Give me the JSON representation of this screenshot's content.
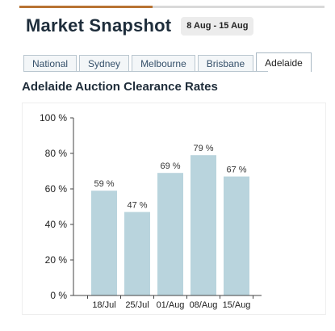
{
  "header": {
    "title": "Market Snapshot",
    "date_range": "8 Aug - 15 Aug"
  },
  "tabs": [
    {
      "label": "National",
      "active": false
    },
    {
      "label": "Sydney",
      "active": false
    },
    {
      "label": "Melbourne",
      "active": false
    },
    {
      "label": "Brisbane",
      "active": false
    },
    {
      "label": "Adelaide",
      "active": true
    }
  ],
  "colors": {
    "bar": "#b9d4dd",
    "accent": "#b87333",
    "title": "#1e2d3b"
  },
  "chart_data": {
    "type": "bar",
    "title": "Adelaide Auction Clearance Rates",
    "categories": [
      "18/Jul",
      "25/Jul",
      "01/Aug",
      "08/Aug",
      "15/Aug"
    ],
    "values": [
      59,
      47,
      69,
      79,
      67
    ],
    "value_labels": [
      "59 %",
      "47 %",
      "69 %",
      "79 %",
      "67 %"
    ],
    "yticks": [
      "0 %",
      "20 %",
      "40 %",
      "60 %",
      "80 %",
      "100 %"
    ],
    "ylim": [
      0,
      100
    ],
    "grid": false,
    "legend": false
  }
}
